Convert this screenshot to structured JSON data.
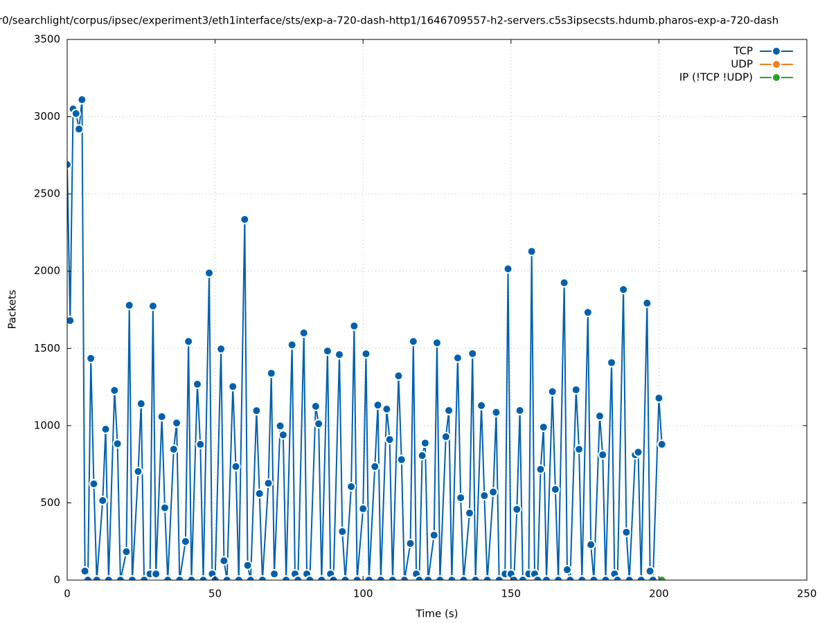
{
  "chart_data": {
    "type": "line",
    "title": "r0/searchlight/corpus/ipsec/experiment3/eth1interface/sts/exp-a-720-dash-http1/1646709557-h2-servers.c5s3ipsecsts.hdumb.pharos-exp-a-720-dash",
    "x_label": "Time (s)",
    "y_label": "Packets",
    "xlim": [
      0,
      250
    ],
    "xticks": [
      0,
      50,
      100,
      150,
      200,
      250
    ],
    "ylim": [
      0,
      3500
    ],
    "yticks": [
      0,
      500,
      1000,
      1500,
      2000,
      2500,
      3000,
      3500
    ],
    "grid": true,
    "legend": "top-right",
    "series": [
      {
        "name": "TCP",
        "color": "#0060ad",
        "x": [
          0,
          1,
          2,
          3,
          4,
          5,
          6,
          7,
          8,
          9,
          10,
          12,
          13,
          14,
          16,
          17,
          18,
          20,
          21,
          22,
          24,
          25,
          26,
          28,
          29,
          30,
          32,
          33,
          34,
          36,
          37,
          38,
          40,
          41,
          42,
          44,
          45,
          46,
          48,
          49,
          50,
          52,
          53,
          54,
          56,
          57,
          58,
          60,
          61,
          62,
          64,
          65,
          66,
          68,
          69,
          70,
          72,
          73,
          74,
          76,
          77,
          78,
          80,
          81,
          82,
          84,
          85,
          86,
          88,
          89,
          90,
          92,
          93,
          94,
          96,
          97,
          98,
          100,
          101,
          102,
          104,
          105,
          106,
          108,
          109,
          110,
          112,
          113,
          114,
          116,
          117,
          118,
          119,
          120,
          121,
          122,
          124,
          125,
          126,
          128,
          129,
          130,
          132,
          133,
          134,
          136,
          137,
          138,
          140,
          141,
          142,
          144,
          145,
          146,
          148,
          149,
          150,
          151,
          152,
          153,
          154,
          156,
          157,
          158,
          159,
          160,
          161,
          162,
          164,
          165,
          166,
          168,
          169,
          170,
          172,
          173,
          174,
          176,
          177,
          178,
          180,
          181,
          182,
          184,
          185,
          186,
          188,
          189,
          190,
          192,
          193,
          194,
          196,
          197,
          198,
          200,
          201
        ],
        "values": [
          2690,
          1680,
          3050,
          3020,
          2920,
          3110,
          58,
          0,
          1435,
          623,
          0,
          515,
          977,
          0,
          1228,
          883,
          0,
          184,
          1779,
          0,
          703,
          1142,
          0,
          40,
          1774,
          40,
          1058,
          468,
          0,
          847,
          1017,
          0,
          250,
          1545,
          0,
          1268,
          879,
          0,
          1988,
          40,
          0,
          1496,
          125,
          0,
          1253,
          735,
          0,
          2335,
          95,
          0,
          1097,
          560,
          0,
          627,
          1339,
          40,
          998,
          940,
          0,
          1523,
          40,
          0,
          1600,
          40,
          0,
          1125,
          1012,
          0,
          1483,
          40,
          0,
          1460,
          314,
          0,
          605,
          1645,
          0,
          462,
          1465,
          0,
          735,
          1133,
          0,
          1107,
          910,
          0,
          1322,
          780,
          0,
          237,
          1545,
          40,
          0,
          806,
          887,
          0,
          291,
          1536,
          0,
          928,
          1098,
          0,
          1438,
          533,
          0,
          434,
          1466,
          0,
          1130,
          547,
          0,
          570,
          1086,
          0,
          40,
          2015,
          40,
          0,
          458,
          1098,
          0,
          40,
          2128,
          40,
          0,
          717,
          990,
          0,
          1220,
          587,
          0,
          1925,
          67,
          0,
          1232,
          847,
          0,
          1733,
          229,
          0,
          1062,
          811,
          0,
          1408,
          40,
          0,
          1881,
          310,
          0,
          811,
          828,
          0,
          1793,
          58,
          0,
          1178,
          879
        ]
      },
      {
        "name": "UDP",
        "color": "#f08020",
        "x": [
          201
        ],
        "values": [
          0
        ]
      },
      {
        "name": "IP (!TCP  !UDP)",
        "color": "#2ca02c",
        "x": [
          201
        ],
        "values": [
          0
        ]
      }
    ]
  }
}
